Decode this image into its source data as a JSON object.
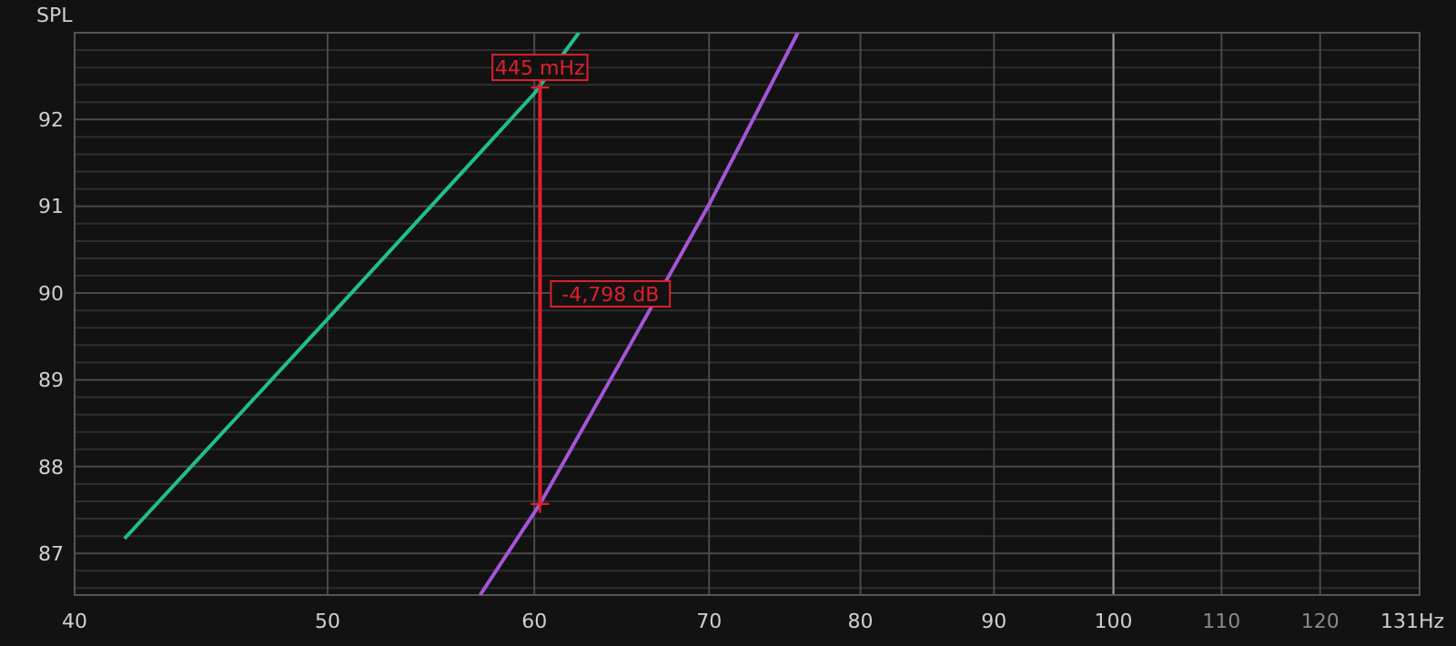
{
  "chart_data": {
    "type": "line",
    "ylabel": "SPL",
    "log": "x",
    "grid": true,
    "xlim": [
      40,
      131
    ],
    "ylim": [
      86.52,
      93
    ],
    "xticks": [
      40,
      50,
      60,
      70,
      80,
      90,
      100,
      110,
      120,
      {
        "value": 131,
        "label": "131Hz"
      }
    ],
    "yticks": [
      {
        "value": 86.6,
        "label": null
      },
      {
        "value": 86.8,
        "label": null
      },
      87,
      {
        "value": 87.2,
        "label": null
      },
      {
        "value": 87.4,
        "label": null
      },
      {
        "value": 87.6,
        "label": null
      },
      {
        "value": 87.8,
        "label": null
      },
      88,
      {
        "value": 88.2,
        "label": null
      },
      {
        "value": 88.4,
        "label": null
      },
      {
        "value": 88.6,
        "label": null
      },
      {
        "value": 88.8,
        "label": null
      },
      89,
      {
        "value": 89.2,
        "label": null
      },
      {
        "value": 89.4,
        "label": null
      },
      {
        "value": 89.6,
        "label": null
      },
      {
        "value": 89.8,
        "label": null
      },
      90,
      {
        "value": 90.2,
        "label": null
      },
      {
        "value": 90.4,
        "label": null
      },
      {
        "value": 90.6,
        "label": null
      },
      {
        "value": 90.8,
        "label": null
      },
      91,
      {
        "value": 91.2,
        "label": null
      },
      {
        "value": 91.4,
        "label": null
      },
      {
        "value": 91.6,
        "label": null
      },
      {
        "value": 91.8,
        "label": null
      },
      92,
      {
        "value": 92.2,
        "label": null
      },
      {
        "value": 92.4,
        "label": null
      },
      {
        "value": 92.6,
        "label": null
      },
      {
        "value": 92.8,
        "label": null
      }
    ],
    "series": [
      {
        "color": "#1fbf8f",
        "x": [
          41.8,
          50,
          60,
          62.4
        ],
        "values": [
          87.17,
          89.7,
          92.3,
          93
        ]
      },
      {
        "color": "#a555d8",
        "x": [
          57.2,
          60.3,
          65,
          70,
          75.7
        ],
        "values": [
          86.52,
          87.57,
          89.3,
          91.02,
          93
        ]
      },
      {
        "color": "#e0202a",
        "marker": "cross",
        "x": [
          60.3,
          60.3
        ],
        "values": [
          87.57,
          92.37
        ]
      }
    ],
    "ref_lines": [
      {
        "axis": "x",
        "value": 100,
        "color": "#9a9a9a"
      }
    ],
    "annotations": [
      {
        "text": "445 mHz",
        "x": 60.3,
        "y": 92.37
      },
      {
        "text": "-4,798 dB",
        "x": 60.3,
        "y": 89.97
      }
    ]
  }
}
